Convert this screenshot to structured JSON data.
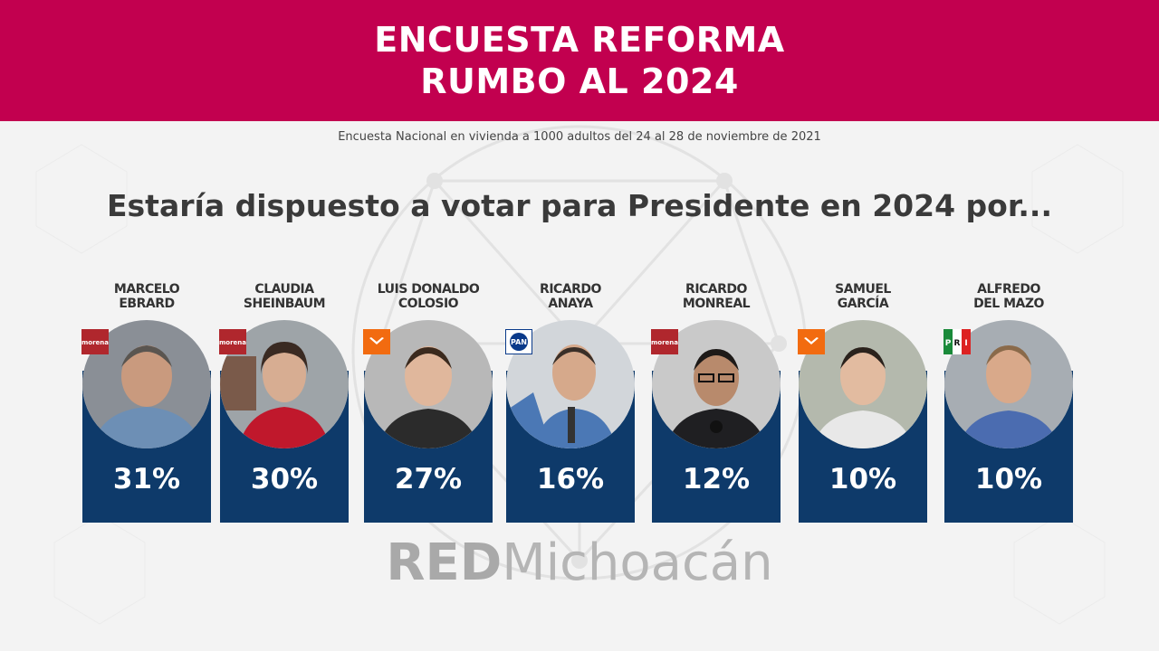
{
  "header": {
    "title_line1": "ENCUESTA REFORMA",
    "title_line2": "RUMBO AL 2024"
  },
  "subtitle": "Encuesta Nacional en vivienda a 1000 adultos del 24 al 28 de noviembre de 2021",
  "question": "Estaría dispuesto a votar para Presidente en 2024 por...",
  "colors": {
    "header": "#c2004f",
    "panel": "#0e3a6a",
    "morena": "#b0272d",
    "mc": "#f26b10",
    "pan": "#0a3a8a"
  },
  "candidates": [
    {
      "line1": "MARCELO",
      "line2": "EBRARD",
      "pct": "31%",
      "value": 31,
      "party": "morena"
    },
    {
      "line1": "CLAUDIA",
      "line2": "SHEINBAUM",
      "pct": "30%",
      "value": 30,
      "party": "morena"
    },
    {
      "line1": "LUIS DONALDO",
      "line2": "COLOSIO",
      "pct": "27%",
      "value": 27,
      "party": "mc"
    },
    {
      "line1": "RICARDO",
      "line2": "ANAYA",
      "pct": "16%",
      "value": 16,
      "party": "pan"
    },
    {
      "line1": "RICARDO",
      "line2": "MONREAL",
      "pct": "12%",
      "value": 12,
      "party": "morena"
    },
    {
      "line1": "SAMUEL",
      "line2": "GARCÍA",
      "pct": "10%",
      "value": 10,
      "party": "mc"
    },
    {
      "line1": "ALFREDO",
      "line2": "DEL MAZO",
      "pct": "10%",
      "value": 10,
      "party": "pri"
    }
  ],
  "logos": {
    "morena": "morena",
    "pan": "PAN",
    "pri_p": "P",
    "pri_r": "R",
    "pri_i": "I"
  },
  "footer": {
    "brand_bold": "RED",
    "brand_light": "Michoacán"
  }
}
